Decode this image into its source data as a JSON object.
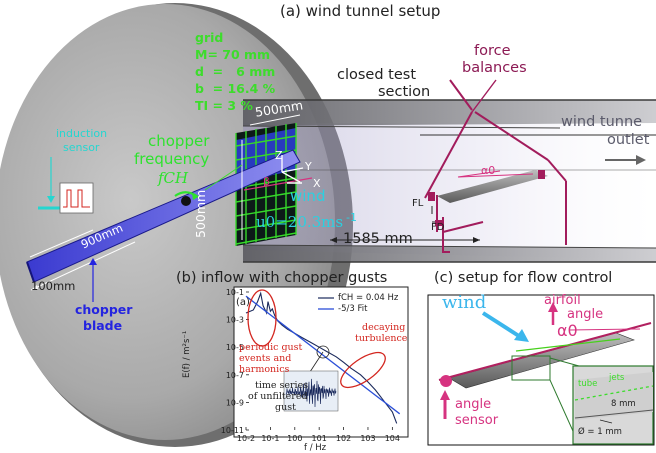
{
  "panel_a": {
    "title": "(a) wind tunnel setup",
    "grid_params": {
      "heading": "grid",
      "lines": [
        "M= 70 mm",
        "d  =   6 mm",
        "b  = 16.4 %",
        "TI = 3 %"
      ]
    },
    "closed_test_section": [
      "closed test",
      "section"
    ],
    "force_balances": [
      "force",
      "balances"
    ],
    "wind_tunnel_outlet": [
      "wind tunne",
      "outlet"
    ],
    "induction_sensor": [
      "induction",
      "sensor"
    ],
    "chopper_frequency": [
      "chopper",
      "frequency"
    ],
    "f_ch": "fCH",
    "dim_500_top": "500mm",
    "dim_500_side": "500mm",
    "dim_900": "900mm",
    "dim_100": "100mm",
    "dim_1585": "1585 mm",
    "chopper_blade": [
      "chopper",
      "blade"
    ],
    "wind_label": "wind",
    "u0_label": "u0=20.3ms",
    "u0_exp": "-1",
    "axis_z": "Z",
    "axis_y": "Y",
    "axis_x": "X",
    "beta": "β",
    "alpha0": "α0",
    "FL": "FL",
    "FD": "FD"
  },
  "panel_b": {
    "title": "(b) inflow with chopper gusts",
    "subpanel_tag": "(a)",
    "legend": [
      "fCH = 0.04 Hz",
      "-5/3 Fit"
    ],
    "annotation_periodic": [
      "periodic gust",
      "events and",
      "harmonics"
    ],
    "annotation_decaying": [
      "decaying",
      "turbulence"
    ],
    "annotation_timeseries": [
      "time series",
      "of unfiltered",
      "gust"
    ],
    "ylabel": "E(f) / m²s⁻¹",
    "xlabel": "f / Hz"
  },
  "panel_c": {
    "title": "(c) setup for flow control",
    "wind": "wind",
    "airfoil_angle": [
      "airfoil",
      "angle"
    ],
    "alpha0": "α0",
    "angle_sensor": [
      "angle",
      "sensor"
    ],
    "tube": "tube",
    "jets": "jets",
    "dim_8mm": "8 mm",
    "diameter": "Ø = 1 mm"
  },
  "chart_data": {
    "type": "line",
    "title": "",
    "xlabel": "f / Hz",
    "ylabel": "E(f) / m²s⁻¹",
    "xscale": "log",
    "yscale": "log",
    "xlim": [
      0.01,
      30000
    ],
    "ylim": [
      1e-11,
      0.1
    ],
    "x_ticks": [
      "10-2",
      "10-1",
      "100",
      "101",
      "102",
      "103",
      "104"
    ],
    "y_ticks": [
      "10-1",
      "10-3",
      "10-5",
      "10-7",
      "10-9",
      "10-11"
    ],
    "legend_position": "top-right",
    "series": [
      {
        "name": "fCH = 0.04 Hz",
        "color": "#1b2a5c",
        "x": [
          0.01,
          0.02,
          0.03,
          0.04,
          0.05,
          0.07,
          0.08,
          0.1,
          0.12,
          0.15,
          0.2,
          0.3,
          0.5,
          1,
          2,
          5,
          10,
          20,
          50,
          100,
          200,
          500,
          1000,
          2000,
          5000,
          10000,
          15000
        ],
        "y": [
          0.003,
          0.005,
          0.02,
          0.08,
          0.01,
          0.003,
          0.02,
          0.004,
          0.006,
          0.002,
          0.0008,
          0.0004,
          0.0002,
          0.0001,
          5e-05,
          2e-05,
          1e-05,
          5e-06,
          2e-06,
          8e-07,
          3e-07,
          1e-07,
          3e-08,
          8e-09,
          1e-09,
          2e-10,
          3e-11
        ]
      },
      {
        "name": "-5/3 Fit",
        "color": "#2b4fd8",
        "x": [
          0.01,
          20000
        ],
        "y": [
          0.05,
          1.5e-10
        ]
      }
    ]
  }
}
